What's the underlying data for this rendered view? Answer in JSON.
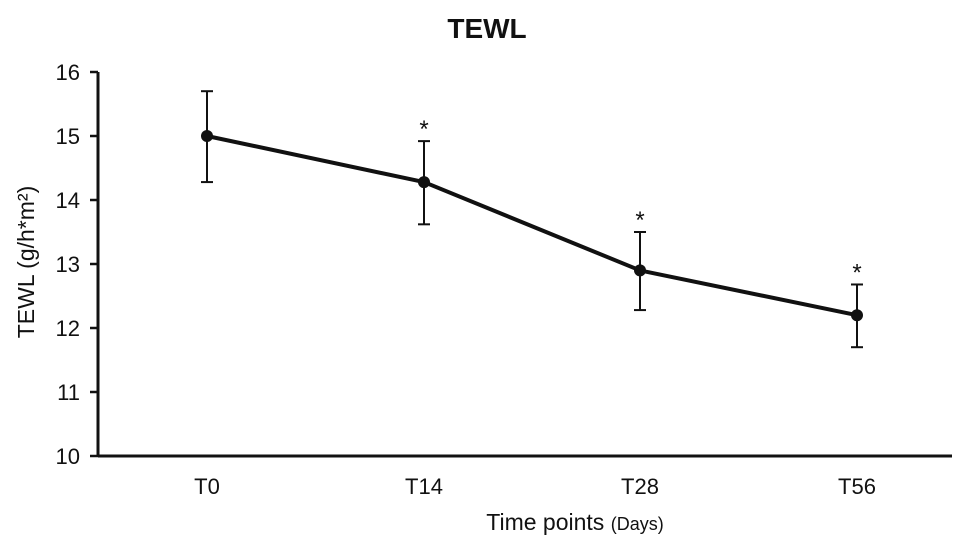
{
  "chart_data": {
    "type": "line",
    "title": "TEWL",
    "xlabel": "Time points",
    "xlabel_unit": "(Days)",
    "ylabel": "TEWL (g/h*m²)",
    "ylim": [
      10,
      16
    ],
    "yticks": [
      "10",
      "11",
      "12",
      "13",
      "14",
      "15",
      "16"
    ],
    "categories": [
      "T0",
      "T14",
      "T28",
      "T56"
    ],
    "series": [
      {
        "values": [
          15.0,
          14.28,
          12.9,
          12.2
        ],
        "error_upper": [
          15.7,
          14.92,
          13.5,
          12.68
        ],
        "error_lower": [
          14.28,
          13.62,
          12.28,
          11.7
        ],
        "annotations": [
          "",
          "*",
          "*",
          "*"
        ],
        "color": "#111111"
      }
    ],
    "grid": false,
    "legend": "none"
  }
}
